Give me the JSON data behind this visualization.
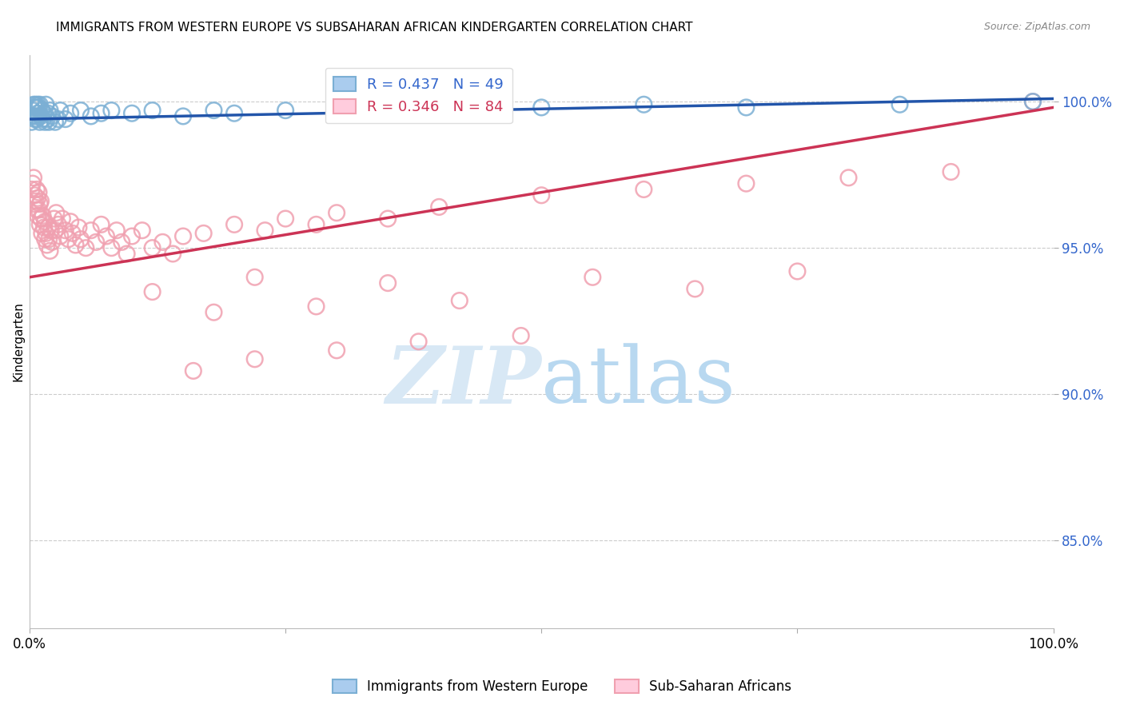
{
  "title": "IMMIGRANTS FROM WESTERN EUROPE VS SUBSAHARAN AFRICAN KINDERGARTEN CORRELATION CHART",
  "source": "Source: ZipAtlas.com",
  "ylabel": "Kindergarten",
  "legend_label_blue": "Immigrants from Western Europe",
  "legend_label_pink": "Sub-Saharan Africans",
  "R_blue": 0.437,
  "N_blue": 49,
  "R_pink": 0.346,
  "N_pink": 84,
  "blue_scatter_color": "#7BAFD4",
  "pink_scatter_color": "#F0A0B0",
  "blue_line_color": "#2255AA",
  "pink_line_color": "#CC3355",
  "background_color": "#FFFFFF",
  "grid_color": "#CCCCCC",
  "axis_tick_color": "#3366CC",
  "watermark_color": "#D8E8F5",
  "xlim": [
    0.0,
    1.0
  ],
  "ylim": [
    0.82,
    1.016
  ],
  "yticks": [
    0.85,
    0.9,
    0.95,
    1.0
  ],
  "ytick_labels": [
    "85.0%",
    "90.0%",
    "95.0%",
    "100.0%"
  ],
  "xtick_positions": [
    0.0,
    0.25,
    0.5,
    0.75,
    1.0
  ],
  "xtick_labels": [
    "0.0%",
    "",
    "",
    "",
    "100.0%"
  ],
  "blue_x": [
    0.002,
    0.003,
    0.004,
    0.004,
    0.005,
    0.005,
    0.006,
    0.006,
    0.007,
    0.007,
    0.008,
    0.008,
    0.009,
    0.009,
    0.01,
    0.01,
    0.011,
    0.012,
    0.013,
    0.014,
    0.015,
    0.016,
    0.017,
    0.018,
    0.019,
    0.02,
    0.022,
    0.025,
    0.028,
    0.03,
    0.035,
    0.04,
    0.05,
    0.06,
    0.07,
    0.08,
    0.1,
    0.12,
    0.15,
    0.18,
    0.2,
    0.25,
    0.3,
    0.4,
    0.5,
    0.6,
    0.7,
    0.85,
    0.98
  ],
  "blue_y": [
    0.993,
    0.997,
    0.995,
    0.999,
    0.994,
    0.998,
    0.995,
    0.999,
    0.994,
    0.998,
    0.996,
    0.999,
    0.995,
    0.998,
    0.993,
    0.999,
    0.995,
    0.997,
    0.994,
    0.996,
    0.993,
    0.999,
    0.994,
    0.996,
    0.993,
    0.997,
    0.995,
    0.993,
    0.994,
    0.997,
    0.994,
    0.996,
    0.997,
    0.995,
    0.996,
    0.997,
    0.996,
    0.997,
    0.995,
    0.997,
    0.996,
    0.997,
    0.998,
    0.997,
    0.998,
    0.999,
    0.998,
    0.999,
    1.0
  ],
  "pink_x": [
    0.002,
    0.003,
    0.004,
    0.005,
    0.005,
    0.006,
    0.007,
    0.007,
    0.008,
    0.008,
    0.009,
    0.009,
    0.01,
    0.01,
    0.011,
    0.011,
    0.012,
    0.013,
    0.014,
    0.015,
    0.015,
    0.016,
    0.017,
    0.018,
    0.019,
    0.02,
    0.021,
    0.022,
    0.024,
    0.025,
    0.026,
    0.028,
    0.03,
    0.032,
    0.035,
    0.038,
    0.04,
    0.042,
    0.045,
    0.048,
    0.05,
    0.055,
    0.06,
    0.065,
    0.07,
    0.075,
    0.08,
    0.085,
    0.09,
    0.095,
    0.1,
    0.11,
    0.12,
    0.13,
    0.14,
    0.15,
    0.17,
    0.2,
    0.23,
    0.25,
    0.28,
    0.3,
    0.35,
    0.4,
    0.5,
    0.6,
    0.7,
    0.8,
    0.9,
    0.12,
    0.18,
    0.22,
    0.28,
    0.35,
    0.42,
    0.55,
    0.65,
    0.75,
    0.48,
    0.38,
    0.3,
    0.22,
    0.16,
    0.98
  ],
  "pink_y": [
    0.97,
    0.972,
    0.974,
    0.965,
    0.968,
    0.966,
    0.963,
    0.97,
    0.961,
    0.967,
    0.963,
    0.969,
    0.958,
    0.965,
    0.96,
    0.966,
    0.955,
    0.961,
    0.957,
    0.953,
    0.959,
    0.955,
    0.951,
    0.957,
    0.953,
    0.949,
    0.956,
    0.952,
    0.96,
    0.956,
    0.962,
    0.958,
    0.954,
    0.96,
    0.956,
    0.953,
    0.959,
    0.955,
    0.951,
    0.957,
    0.953,
    0.95,
    0.956,
    0.952,
    0.958,
    0.954,
    0.95,
    0.956,
    0.952,
    0.948,
    0.954,
    0.956,
    0.95,
    0.952,
    0.948,
    0.954,
    0.955,
    0.958,
    0.956,
    0.96,
    0.958,
    0.962,
    0.96,
    0.964,
    0.968,
    0.97,
    0.972,
    0.974,
    0.976,
    0.935,
    0.928,
    0.94,
    0.93,
    0.938,
    0.932,
    0.94,
    0.936,
    0.942,
    0.92,
    0.918,
    0.915,
    0.912,
    0.908,
    1.0
  ],
  "blue_trend_x": [
    0.0,
    1.0
  ],
  "blue_trend_y": [
    0.994,
    1.001
  ],
  "pink_trend_x": [
    0.0,
    1.0
  ],
  "pink_trend_y": [
    0.94,
    0.998
  ]
}
